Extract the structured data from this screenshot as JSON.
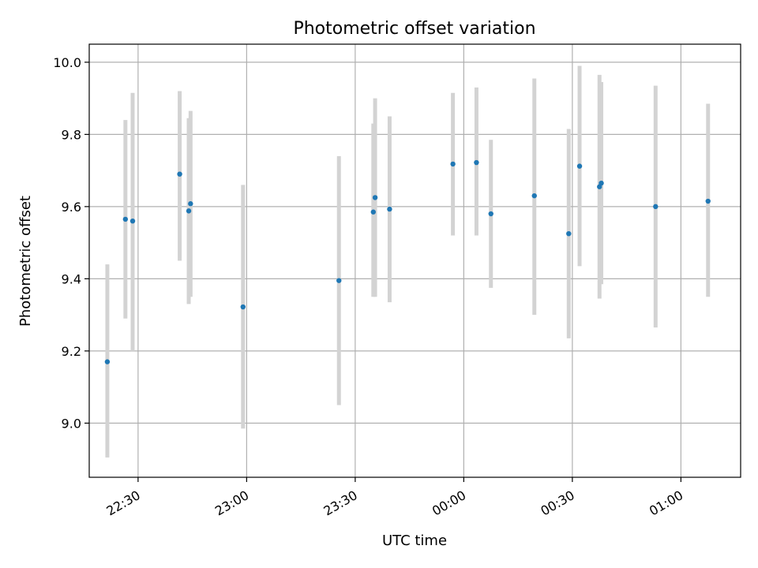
{
  "chart_data": {
    "type": "scatter",
    "title": "Photometric offset variation",
    "xlabel": "UTC time",
    "ylabel": "Photometric offset",
    "x_axis_kind": "time",
    "x_date": "1970-01-01",
    "x_range": [
      "22:16:30",
      "01:16:30"
    ],
    "ylim": [
      8.85,
      10.05
    ],
    "x_ticks": [
      "22:30",
      "23:00",
      "23:30",
      "00:00",
      "00:30",
      "01:00"
    ],
    "x_tick_times": [
      "22:30:00",
      "23:00:00",
      "23:30:00",
      "00:00:00",
      "00:30:00",
      "01:00:00"
    ],
    "y_ticks": [
      "9.0",
      "9.2",
      "9.4",
      "9.6",
      "9.8",
      "10.0"
    ],
    "y_tick_values": [
      9.0,
      9.2,
      9.4,
      9.6,
      9.8,
      10.0
    ],
    "grid": true,
    "marker_color": "#1f77b4",
    "errorbar_color": "#d3d3d3",
    "points": [
      {
        "x": "22:21:30",
        "y": 9.17,
        "yerr_low": 8.905,
        "yerr_high": 9.44
      },
      {
        "x": "22:26:30",
        "y": 9.565,
        "yerr_low": 9.29,
        "yerr_high": 9.84
      },
      {
        "x": "22:28:30",
        "y": 9.56,
        "yerr_low": 9.2,
        "yerr_high": 9.915
      },
      {
        "x": "22:41:30",
        "y": 9.69,
        "yerr_low": 9.45,
        "yerr_high": 9.92
      },
      {
        "x": "22:44:00",
        "y": 9.588,
        "yerr_low": 9.33,
        "yerr_high": 9.845
      },
      {
        "x": "22:44:30",
        "y": 9.608,
        "yerr_low": 9.35,
        "yerr_high": 9.865
      },
      {
        "x": "22:59:00",
        "y": 9.322,
        "yerr_low": 8.985,
        "yerr_high": 9.66
      },
      {
        "x": "23:25:30",
        "y": 9.395,
        "yerr_low": 9.05,
        "yerr_high": 9.74
      },
      {
        "x": "23:35:00",
        "y": 9.585,
        "yerr_low": 9.35,
        "yerr_high": 9.83
      },
      {
        "x": "23:35:30",
        "y": 9.625,
        "yerr_low": 9.35,
        "yerr_high": 9.9
      },
      {
        "x": "23:39:30",
        "y": 9.593,
        "yerr_low": 9.335,
        "yerr_high": 9.85
      },
      {
        "x": "23:57:00",
        "y": 9.718,
        "yerr_low": 9.52,
        "yerr_high": 9.915
      },
      {
        "x": "00:03:30",
        "y": 9.722,
        "yerr_low": 9.52,
        "yerr_high": 9.93
      },
      {
        "x": "00:07:30",
        "y": 9.58,
        "yerr_low": 9.375,
        "yerr_high": 9.785
      },
      {
        "x": "00:19:30",
        "y": 9.63,
        "yerr_low": 9.3,
        "yerr_high": 9.955
      },
      {
        "x": "00:29:00",
        "y": 9.525,
        "yerr_low": 9.235,
        "yerr_high": 9.815
      },
      {
        "x": "00:32:00",
        "y": 9.712,
        "yerr_low": 9.435,
        "yerr_high": 9.99
      },
      {
        "x": "00:37:30",
        "y": 9.655,
        "yerr_low": 9.345,
        "yerr_high": 9.965
      },
      {
        "x": "00:38:00",
        "y": 9.665,
        "yerr_low": 9.385,
        "yerr_high": 9.945
      },
      {
        "x": "00:53:00",
        "y": 9.6,
        "yerr_low": 9.265,
        "yerr_high": 9.935
      },
      {
        "x": "01:07:30",
        "y": 9.615,
        "yerr_low": 9.35,
        "yerr_high": 9.885
      }
    ]
  }
}
